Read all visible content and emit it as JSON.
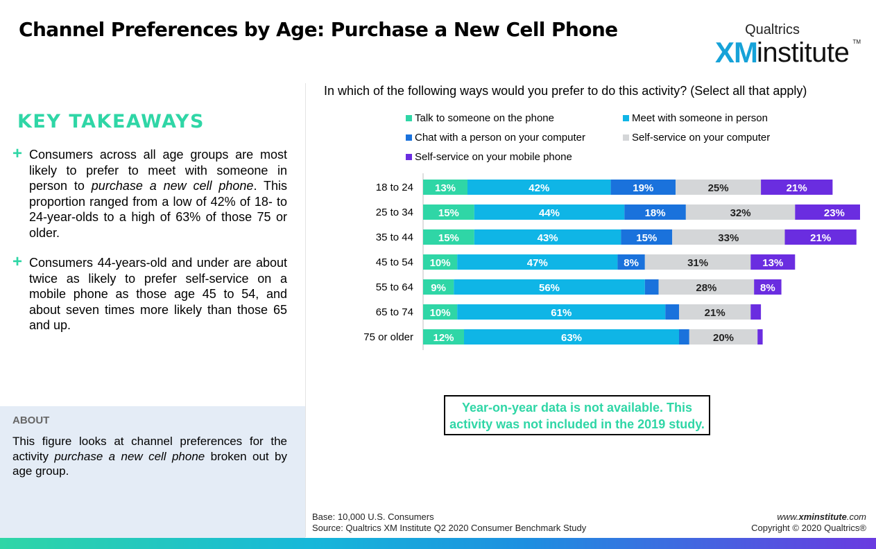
{
  "header": {
    "title": "Channel Preferences by Age: Purchase a New Cell Phone",
    "logo_top": "Qualtrics",
    "logo_xm": "XM",
    "logo_institute": "institute",
    "logo_tm": "TM"
  },
  "takeaways": {
    "title": "KEY TAKEAWAYS",
    "bullets": [
      {
        "before": "Consumers across all age groups are most likely to prefer to meet with someone in person to ",
        "em": "purchase a new cell phone",
        "after": ". This proportion ranged from a low of 42% of 18- to 24-year-olds to a high of 63% of those 75 or older."
      },
      {
        "before": "Consumers 44-years-old and under are about twice as likely to prefer self-service on a mobile phone as those age 45 to 54, and about seven times more likely than those 65 and up.",
        "em": "",
        "after": ""
      }
    ]
  },
  "about": {
    "title": "ABOUT",
    "before": "This figure looks at channel preferences for the activity ",
    "em": "purchase a new cell phone",
    "after": " broken out by age group."
  },
  "chart_data": {
    "type": "bar",
    "orientation": "horizontal",
    "stacked": true,
    "title": "In which of the following ways would you prefer to do this activity? (Select all that apply)",
    "categories": [
      "18 to 24",
      "25 to 34",
      "35 to 44",
      "45 to 54",
      "55 to 64",
      "65 to 74",
      "75 or older"
    ],
    "series": [
      {
        "name": "Talk to someone on the phone",
        "color": "#2fd6a6",
        "values": [
          13,
          15,
          15,
          10,
          9,
          10,
          12
        ]
      },
      {
        "name": "Meet with someone in person",
        "color": "#0fb5e6",
        "values": [
          42,
          44,
          43,
          47,
          56,
          61,
          63
        ]
      },
      {
        "name": "Chat with a person on your computer",
        "color": "#1a72dc",
        "values": [
          19,
          18,
          15,
          8,
          4,
          4,
          3
        ]
      },
      {
        "name": "Self-service on your computer",
        "color": "#d4d6d8",
        "values": [
          25,
          32,
          33,
          31,
          28,
          21,
          20
        ]
      },
      {
        "name": "Self-service on your mobile phone",
        "color": "#6a2de0",
        "values": [
          21,
          23,
          21,
          13,
          8,
          3,
          1.5
        ]
      }
    ],
    "labels": [
      [
        "13%",
        "15%",
        "15%",
        "10%",
        "9%",
        "10%",
        "12%"
      ],
      [
        "42%",
        "44%",
        "43%",
        "47%",
        "56%",
        "61%",
        "63%"
      ],
      [
        "19%",
        "18%",
        "15%",
        "8%",
        "",
        "",
        ""
      ],
      [
        "25%",
        "32%",
        "33%",
        "31%",
        "28%",
        "21%",
        "20%"
      ],
      [
        "21%",
        "23%",
        "21%",
        "13%",
        "8%",
        "",
        ""
      ]
    ],
    "legend_position": "top",
    "grid": false
  },
  "note": {
    "text": "Year-on-year data is not available. This activity was not included in the 2019 study."
  },
  "footer": {
    "base": "Base: 10,000 U.S. Consumers",
    "source": "Source: Qualtrics XM Institute Q2 2020 Consumer Benchmark Study",
    "url_prefix": "www.",
    "url_bold": "xminstitute",
    "url_suffix": ".com",
    "copyright": "Copyright © 2020 Qualtrics®"
  }
}
